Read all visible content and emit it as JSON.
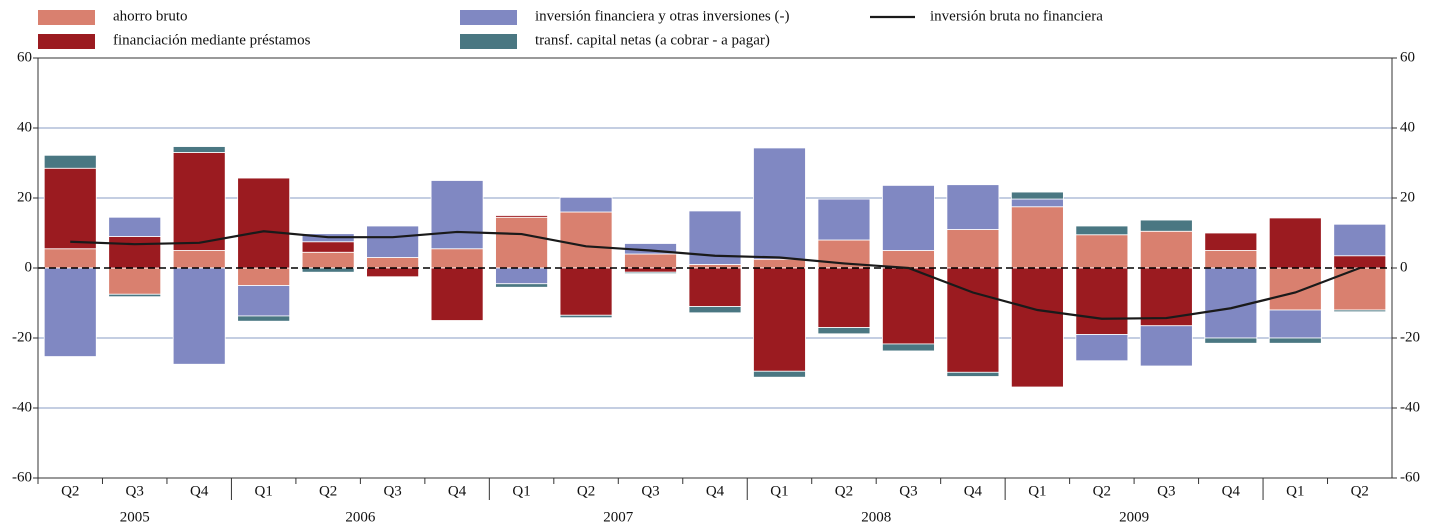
{
  "chart_data": {
    "type": "bar",
    "categories": [
      "Q2",
      "Q3",
      "Q4",
      "Q1",
      "Q2",
      "Q3",
      "Q4",
      "Q1",
      "Q2",
      "Q3",
      "Q4",
      "Q1",
      "Q2",
      "Q3",
      "Q4",
      "Q1",
      "Q2",
      "Q3",
      "Q4",
      "Q1",
      "Q2"
    ],
    "years": [
      "2005",
      "2006",
      "2007",
      "2008",
      "2009"
    ],
    "series": [
      {
        "name": "ahorro bruto",
        "type": "bar",
        "color": "#d9806f",
        "values": [
          5.5,
          -7.5,
          5,
          -5,
          4.5,
          3,
          5.5,
          14.5,
          16,
          4,
          1,
          2.5,
          8,
          5,
          11,
          17.5,
          9.5,
          10.5,
          5,
          -12,
          -12
        ]
      },
      {
        "name": "financiación mediante préstamos",
        "type": "bar",
        "color": "#9b1b20",
        "values": [
          23,
          9,
          28,
          25.7,
          3,
          -2.5,
          -15,
          0.5,
          -13.5,
          -1.2,
          -11,
          -29.5,
          -17,
          -21.7,
          -29.8,
          -34,
          -19,
          -16.5,
          5,
          14.3,
          3.5
        ]
      },
      {
        "name": "inversión financiera y otras inversiones (-)",
        "type": "bar",
        "color": "#8088c2",
        "values": [
          -25.3,
          5.5,
          -27.5,
          -8.7,
          2.3,
          9,
          19.5,
          -4.5,
          4.2,
          3,
          15.3,
          31.8,
          11.7,
          18.6,
          12.8,
          2.2,
          -7.5,
          -11.5,
          -20,
          -8,
          9
        ]
      },
      {
        "name": "transf. capital netas (a cobrar - a pagar)",
        "type": "bar",
        "color": "#4a7782",
        "values": [
          3.7,
          -0.7,
          1.7,
          -1.5,
          -1.2,
          0,
          0,
          -1,
          -0.7,
          -0.4,
          -1.8,
          -1.7,
          -1.8,
          -2,
          -1.2,
          2,
          2.5,
          3.2,
          -1.5,
          -1.5,
          -0.5
        ]
      },
      {
        "name": "inversión bruta no financiera",
        "type": "line",
        "color": "#1a1a1a",
        "values": [
          7.5,
          6.8,
          7.2,
          10.5,
          8.8,
          8.8,
          10.3,
          9.7,
          6.2,
          5,
          3.5,
          3,
          1.3,
          0,
          -7,
          -12,
          -14.5,
          -14.3,
          -11.5,
          -7,
          0
        ]
      }
    ],
    "ylim": [
      -60,
      60
    ],
    "yticks": [
      -60,
      -40,
      -20,
      0,
      20,
      40,
      60
    ],
    "y2lim": [
      -60,
      60
    ],
    "y2ticks": [
      -60,
      -40,
      -20,
      0,
      20,
      40,
      60
    ],
    "grid": true
  }
}
